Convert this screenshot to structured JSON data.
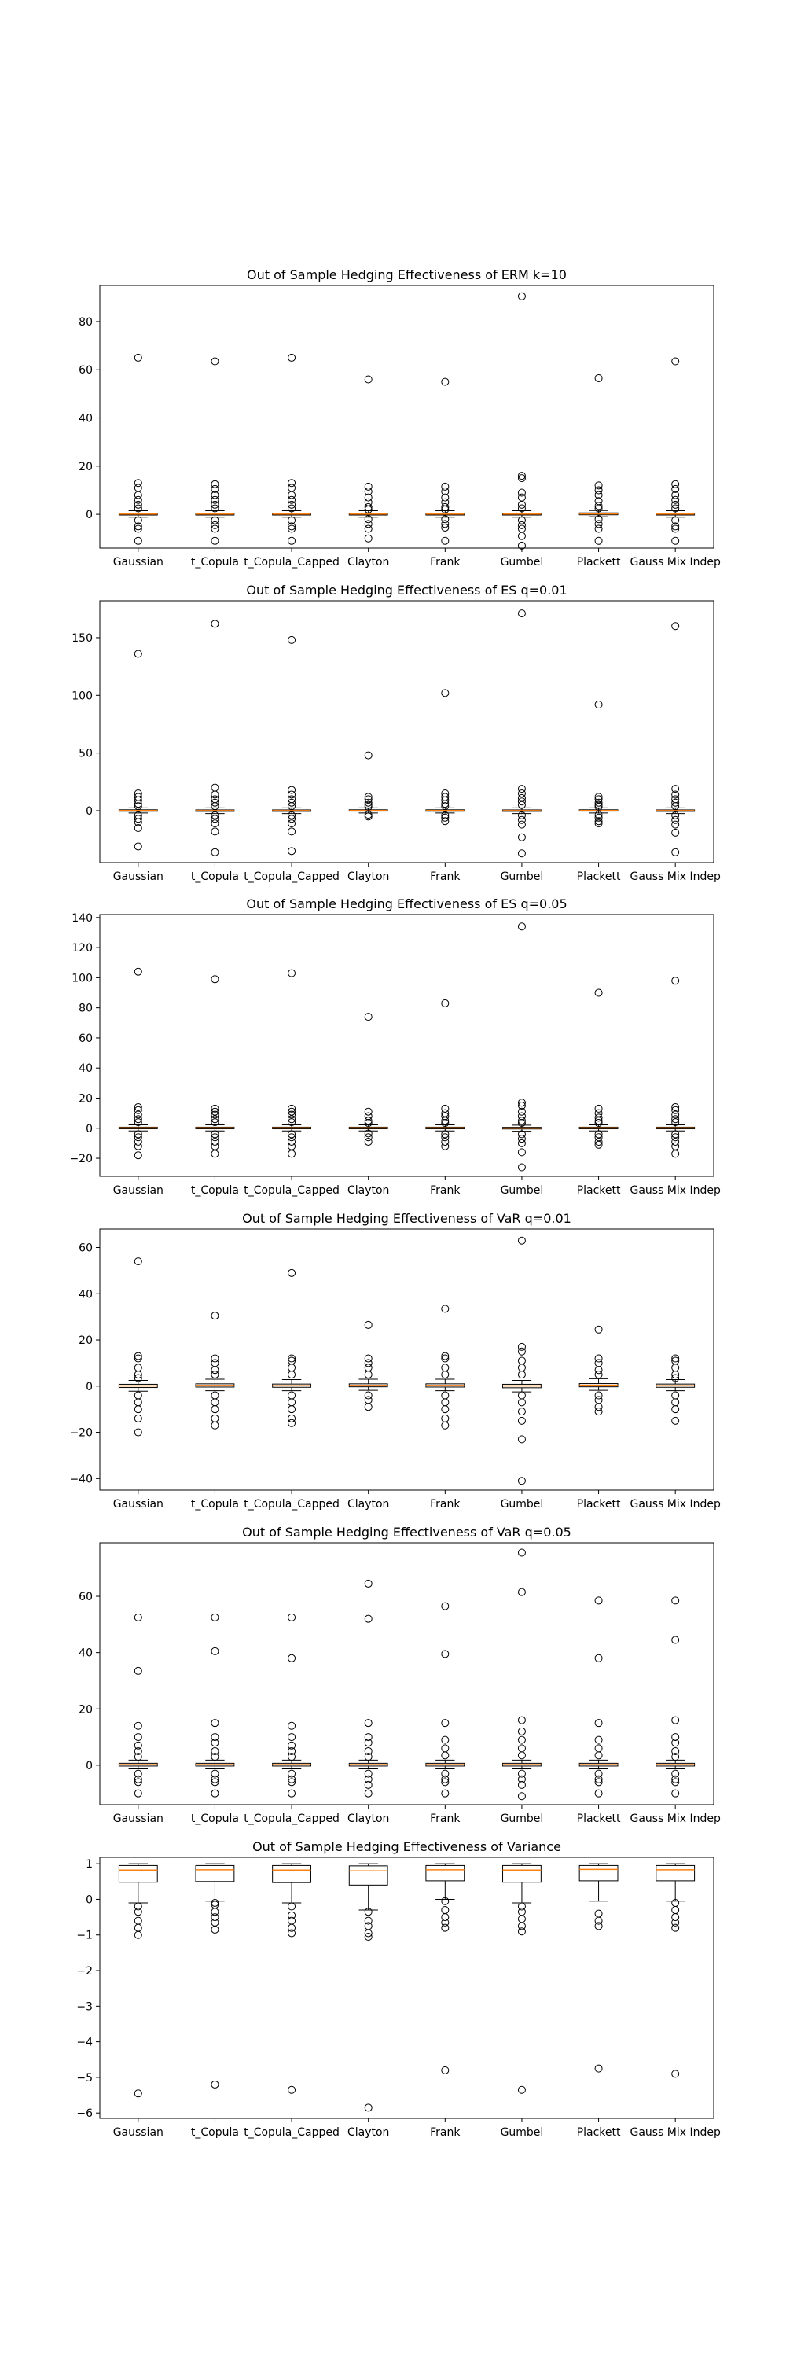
{
  "chart_data": [
    {
      "type": "box",
      "title": "Out of Sample Hedging Effectiveness of ERM k=10",
      "xlabel": "",
      "ylabel": "",
      "categories": [
        "Gaussian",
        "t_Copula",
        "t_Copula_Capped",
        "Clayton",
        "Frank",
        "Gumbel",
        "Plackett",
        "Gauss Mix Indep"
      ],
      "ylim": [
        -14,
        95
      ],
      "yticks": [
        0,
        20,
        40,
        60,
        80
      ],
      "grid": false,
      "boxes": [
        {
          "q1": -0.3,
          "median": 0.1,
          "q3": 0.5,
          "whislo": -1.2,
          "whishi": 1.5,
          "fliers": [
            65,
            13,
            11,
            8,
            6,
            4,
            2.5,
            -2.5,
            -5,
            -6,
            -11
          ]
        },
        {
          "q1": -0.3,
          "median": 0.1,
          "q3": 0.5,
          "whislo": -1.2,
          "whishi": 1.5,
          "fliers": [
            63.5,
            12.5,
            10.5,
            8,
            6,
            4,
            2.5,
            -2.5,
            -4.5,
            -6,
            -11
          ]
        },
        {
          "q1": -0.3,
          "median": 0.1,
          "q3": 0.5,
          "whislo": -1.2,
          "whishi": 1.5,
          "fliers": [
            65,
            13,
            11,
            8,
            6,
            4,
            2.5,
            -2.5,
            -5,
            -6,
            -11
          ]
        },
        {
          "q1": -0.3,
          "median": 0.1,
          "q3": 0.5,
          "whislo": -1.2,
          "whishi": 1.5,
          "fliers": [
            56,
            11.5,
            9.5,
            7,
            5,
            3,
            2,
            -2,
            -4,
            -6,
            -10
          ]
        },
        {
          "q1": -0.3,
          "median": 0.1,
          "q3": 0.5,
          "whislo": -1.2,
          "whishi": 1.5,
          "fliers": [
            55,
            11.5,
            9.5,
            7,
            5,
            3,
            2,
            -2,
            -4,
            -5.5,
            -11
          ]
        },
        {
          "q1": -0.3,
          "median": 0.1,
          "q3": 0.5,
          "whislo": -1.2,
          "whishi": 1.5,
          "fliers": [
            90.5,
            16,
            15,
            9,
            7,
            4,
            2.5,
            -2.5,
            -4.5,
            -6,
            -9,
            -13
          ]
        },
        {
          "q1": -0.2,
          "median": 0.2,
          "q3": 0.6,
          "whislo": -1.0,
          "whishi": 1.6,
          "fliers": [
            56.5,
            12,
            10,
            8,
            5.5,
            3.5,
            2.5,
            -2,
            -4,
            -6,
            -11
          ]
        },
        {
          "q1": -0.3,
          "median": 0.1,
          "q3": 0.5,
          "whislo": -1.2,
          "whishi": 1.5,
          "fliers": [
            63.5,
            12.5,
            10.5,
            8,
            6,
            4,
            2.5,
            -2.5,
            -5,
            -6,
            -11
          ]
        }
      ]
    },
    {
      "type": "box",
      "title": "Out of Sample Hedging Effectiveness of ES q=0.01",
      "xlabel": "",
      "ylabel": "",
      "categories": [
        "Gaussian",
        "t_Copula",
        "t_Copula_Capped",
        "Clayton",
        "Frank",
        "Gumbel",
        "Plackett",
        "Gauss Mix Indep"
      ],
      "ylim": [
        -45,
        182
      ],
      "yticks": [
        0,
        50,
        100,
        150
      ],
      "grid": false,
      "boxes": [
        {
          "q1": -0.5,
          "median": 0.2,
          "q3": 0.8,
          "whislo": -2,
          "whishi": 2.5,
          "fliers": [
            136,
            15,
            12,
            9,
            6,
            4,
            -4,
            -7,
            -10,
            -15,
            -31
          ]
        },
        {
          "q1": -0.6,
          "median": 0.1,
          "q3": 0.7,
          "whislo": -2.5,
          "whishi": 2.5,
          "fliers": [
            162,
            20,
            14,
            10,
            7,
            4,
            -4,
            -7,
            -11,
            -18,
            -36
          ]
        },
        {
          "q1": -0.6,
          "median": 0.1,
          "q3": 0.7,
          "whislo": -2.5,
          "whishi": 2.5,
          "fliers": [
            148,
            18,
            14,
            10,
            7,
            4,
            -4,
            -7,
            -11,
            -18,
            -35
          ]
        },
        {
          "q1": -0.4,
          "median": 0.2,
          "q3": 0.8,
          "whislo": -2,
          "whishi": 2.5,
          "fliers": [
            48,
            12,
            10,
            7,
            5,
            3.5,
            -3.5,
            -5
          ]
        },
        {
          "q1": -0.5,
          "median": 0.2,
          "q3": 0.8,
          "whislo": -2,
          "whishi": 2.5,
          "fliers": [
            102,
            15,
            12,
            9,
            6,
            4,
            -4,
            -6,
            -9
          ]
        },
        {
          "q1": -0.6,
          "median": 0.1,
          "q3": 0.7,
          "whislo": -2.5,
          "whishi": 2.5,
          "fliers": [
            171,
            19,
            15,
            11,
            8,
            5,
            -4,
            -8,
            -12,
            -23,
            -37
          ]
        },
        {
          "q1": -0.4,
          "median": 0.2,
          "q3": 0.8,
          "whislo": -2,
          "whishi": 2.5,
          "fliers": [
            92,
            12,
            10,
            7,
            5,
            3.5,
            -3.5,
            -6,
            -9,
            -11
          ]
        },
        {
          "q1": -0.6,
          "median": 0.1,
          "q3": 0.7,
          "whislo": -2.5,
          "whishi": 2.5,
          "fliers": [
            160,
            19,
            14,
            10,
            7,
            4,
            -4,
            -8,
            -12,
            -19,
            -36
          ]
        }
      ]
    },
    {
      "type": "box",
      "title": "Out of Sample Hedging Effectiveness of ES q=0.05",
      "xlabel": "",
      "ylabel": "",
      "categories": [
        "Gaussian",
        "t_Copula",
        "t_Copula_Capped",
        "Clayton",
        "Frank",
        "Gumbel",
        "Plackett",
        "Gauss Mix Indep"
      ],
      "ylim": [
        -32,
        142
      ],
      "yticks": [
        -20,
        0,
        20,
        40,
        60,
        80,
        100,
        120,
        140
      ],
      "grid": false,
      "boxes": [
        {
          "q1": -0.4,
          "median": 0.2,
          "q3": 0.7,
          "whislo": -1.8,
          "whishi": 2.2,
          "fliers": [
            104,
            14,
            12,
            9,
            6,
            4,
            -4,
            -6,
            -9,
            -12,
            -18
          ]
        },
        {
          "q1": -0.4,
          "median": 0.2,
          "q3": 0.7,
          "whislo": -1.8,
          "whishi": 2.2,
          "fliers": [
            99,
            13,
            11,
            9,
            6,
            4,
            -4,
            -6,
            -9,
            -12,
            -17
          ]
        },
        {
          "q1": -0.4,
          "median": 0.2,
          "q3": 0.7,
          "whislo": -1.8,
          "whishi": 2.2,
          "fliers": [
            103,
            13,
            11,
            9,
            6,
            4,
            -4,
            -6,
            -9,
            -12,
            -17
          ]
        },
        {
          "q1": -0.4,
          "median": 0.2,
          "q3": 0.7,
          "whislo": -1.8,
          "whishi": 2.2,
          "fliers": [
            74,
            11,
            8,
            5,
            3.5,
            -3.5,
            -6,
            -9
          ]
        },
        {
          "q1": -0.4,
          "median": 0.2,
          "q3": 0.7,
          "whislo": -1.8,
          "whishi": 2.2,
          "fliers": [
            83,
            13,
            10,
            8,
            5,
            3.5,
            -4,
            -6,
            -9,
            -12
          ]
        },
        {
          "q1": -0.5,
          "median": 0.1,
          "q3": 0.6,
          "whislo": -2,
          "whishi": 2,
          "fliers": [
            134,
            17,
            15,
            11,
            8,
            5,
            3.5,
            -4,
            -7,
            -10,
            -16,
            -26
          ]
        },
        {
          "q1": -0.4,
          "median": 0.2,
          "q3": 0.7,
          "whislo": -1.8,
          "whishi": 2.2,
          "fliers": [
            90,
            13,
            10,
            7,
            5,
            3.5,
            -4,
            -6,
            -9,
            -11
          ]
        },
        {
          "q1": -0.4,
          "median": 0.2,
          "q3": 0.7,
          "whislo": -1.8,
          "whishi": 2.2,
          "fliers": [
            98,
            14,
            12,
            9,
            6,
            4,
            -4,
            -6,
            -9,
            -12,
            -17
          ]
        }
      ]
    },
    {
      "type": "box",
      "title": "Out of Sample Hedging Effectiveness of VaR q=0.01",
      "xlabel": "",
      "ylabel": "",
      "categories": [
        "Gaussian",
        "t_Copula",
        "t_Copula_Capped",
        "Clayton",
        "Frank",
        "Gumbel",
        "Plackett",
        "Gauss Mix Indep"
      ],
      "ylim": [
        -45,
        68
      ],
      "yticks": [
        -40,
        -20,
        0,
        20,
        40,
        60
      ],
      "grid": false,
      "boxes": [
        {
          "q1": -0.6,
          "median": 0.1,
          "q3": 0.8,
          "whislo": -2.2,
          "whishi": 2.5,
          "fliers": [
            54,
            13,
            12,
            8,
            5,
            3.5,
            -4,
            -7,
            -10,
            -14,
            -20
          ]
        },
        {
          "q1": -0.4,
          "median": 0.3,
          "q3": 1.0,
          "whislo": -2,
          "whishi": 3,
          "fliers": [
            30.5,
            12,
            10,
            7,
            5,
            -4,
            -7,
            -10,
            -14,
            -17
          ]
        },
        {
          "q1": -0.5,
          "median": 0.2,
          "q3": 0.9,
          "whislo": -2,
          "whishi": 2.8,
          "fliers": [
            49,
            12,
            11,
            8,
            5,
            -4,
            -7,
            -10,
            -14,
            -16
          ]
        },
        {
          "q1": -0.3,
          "median": 0.3,
          "q3": 1.0,
          "whislo": -1.8,
          "whishi": 3,
          "fliers": [
            26.5,
            12,
            10,
            8,
            5,
            -4,
            -6,
            -9
          ]
        },
        {
          "q1": -0.4,
          "median": 0.3,
          "q3": 1.0,
          "whislo": -2,
          "whishi": 3,
          "fliers": [
            33.5,
            13,
            12,
            8,
            5,
            -4,
            -7,
            -10,
            -14,
            -17
          ]
        },
        {
          "q1": -0.7,
          "median": 0.1,
          "q3": 0.8,
          "whislo": -2.5,
          "whishi": 2.5,
          "fliers": [
            63,
            17,
            15,
            11,
            8,
            5,
            -4,
            -7,
            -11,
            -15,
            -23,
            -41
          ]
        },
        {
          "q1": -0.3,
          "median": 0.4,
          "q3": 1.1,
          "whislo": -1.8,
          "whishi": 3.2,
          "fliers": [
            24.5,
            12,
            10,
            7,
            5,
            -4,
            -6,
            -9,
            -11
          ]
        },
        {
          "q1": -0.5,
          "median": 0.2,
          "q3": 0.9,
          "whislo": -2,
          "whishi": 2.8,
          "fliers": [
            12,
            11,
            8,
            5,
            3.5,
            -4,
            -7,
            -10,
            -15
          ]
        }
      ]
    },
    {
      "type": "box",
      "title": "Out of Sample Hedging Effectiveness of VaR q=0.05",
      "xlabel": "",
      "ylabel": "",
      "categories": [
        "Gaussian",
        "t_Copula",
        "t_Copula_Capped",
        "Clayton",
        "Frank",
        "Gumbel",
        "Plackett",
        "Gauss Mix Indep"
      ],
      "ylim": [
        -14,
        79
      ],
      "yticks": [
        0,
        20,
        40,
        60
      ],
      "grid": false,
      "boxes": [
        {
          "q1": -0.3,
          "median": 0.2,
          "q3": 0.7,
          "whislo": -1.3,
          "whishi": 1.8,
          "fliers": [
            52.5,
            33.5,
            14,
            10,
            7,
            5,
            3,
            -3,
            -5,
            -6,
            -10
          ]
        },
        {
          "q1": -0.3,
          "median": 0.2,
          "q3": 0.7,
          "whislo": -1.3,
          "whishi": 1.8,
          "fliers": [
            52.5,
            40.5,
            15,
            10,
            8,
            5,
            3,
            -3,
            -5,
            -6,
            -10
          ]
        },
        {
          "q1": -0.3,
          "median": 0.2,
          "q3": 0.7,
          "whislo": -1.3,
          "whishi": 1.8,
          "fliers": [
            52.5,
            38,
            14,
            10,
            7,
            5,
            3,
            -3,
            -5,
            -6,
            -10
          ]
        },
        {
          "q1": -0.3,
          "median": 0.2,
          "q3": 0.7,
          "whislo": -1.3,
          "whishi": 1.8,
          "fliers": [
            64.5,
            52,
            15,
            10,
            8,
            5,
            3,
            -3,
            -5,
            -7,
            -10
          ]
        },
        {
          "q1": -0.3,
          "median": 0.2,
          "q3": 0.7,
          "whislo": -1.3,
          "whishi": 1.8,
          "fliers": [
            56.5,
            39.5,
            15,
            9,
            6,
            3.5,
            -3,
            -5,
            -6,
            -10
          ]
        },
        {
          "q1": -0.3,
          "median": 0.2,
          "q3": 0.7,
          "whislo": -1.3,
          "whishi": 1.8,
          "fliers": [
            75.5,
            61.5,
            16,
            12,
            9,
            6,
            3.5,
            -3,
            -5,
            -7,
            -11
          ]
        },
        {
          "q1": -0.3,
          "median": 0.2,
          "q3": 0.7,
          "whislo": -1.3,
          "whishi": 1.8,
          "fliers": [
            58.5,
            38,
            15,
            9,
            6,
            3.5,
            -3,
            -5,
            -6,
            -10
          ]
        },
        {
          "q1": -0.3,
          "median": 0.2,
          "q3": 0.7,
          "whislo": -1.3,
          "whishi": 1.8,
          "fliers": [
            58.5,
            44.5,
            16,
            10,
            8,
            5,
            3,
            -3,
            -5,
            -6,
            -10
          ]
        }
      ]
    },
    {
      "type": "box",
      "title": "Out of Sample Hedging Effectiveness of Variance",
      "xlabel": "",
      "ylabel": "",
      "categories": [
        "Gaussian",
        "t_Copula",
        "t_Copula_Capped",
        "Clayton",
        "Frank",
        "Gumbel",
        "Plackett",
        "Gauss Mix Indep"
      ],
      "ylim": [
        -6.15,
        1.18
      ],
      "yticks": [
        -6,
        -5,
        -4,
        -3,
        -2,
        -1,
        0,
        1
      ],
      "grid": false,
      "boxes": [
        {
          "q1": 0.48,
          "median": 0.82,
          "q3": 0.95,
          "whislo": -0.1,
          "whishi": 1.0,
          "fliers": [
            -0.2,
            -0.35,
            -0.6,
            -0.8,
            -1.0,
            -5.45
          ]
        },
        {
          "q1": 0.5,
          "median": 0.83,
          "q3": 0.95,
          "whislo": -0.05,
          "whishi": 1.0,
          "fliers": [
            -0.1,
            -0.15,
            -0.35,
            -0.5,
            -0.65,
            -0.85,
            -5.2
          ]
        },
        {
          "q1": 0.47,
          "median": 0.82,
          "q3": 0.95,
          "whislo": -0.1,
          "whishi": 1.0,
          "fliers": [
            -0.2,
            -0.45,
            -0.6,
            -0.8,
            -0.95,
            -5.35
          ]
        },
        {
          "q1": 0.4,
          "median": 0.8,
          "q3": 0.94,
          "whislo": -0.3,
          "whishi": 1.0,
          "fliers": [
            -0.35,
            -0.6,
            -0.75,
            -0.95,
            -1.05,
            -5.85
          ]
        },
        {
          "q1": 0.52,
          "median": 0.83,
          "q3": 0.95,
          "whislo": 0.0,
          "whishi": 1.0,
          "fliers": [
            -0.05,
            -0.3,
            -0.5,
            -0.65,
            -0.8,
            -4.8
          ]
        },
        {
          "q1": 0.48,
          "median": 0.82,
          "q3": 0.95,
          "whislo": -0.1,
          "whishi": 1.0,
          "fliers": [
            -0.2,
            -0.35,
            -0.55,
            -0.75,
            -0.9,
            -5.35
          ]
        },
        {
          "q1": 0.52,
          "median": 0.84,
          "q3": 0.95,
          "whislo": -0.05,
          "whishi": 1.0,
          "fliers": [
            -0.4,
            -0.6,
            -0.75,
            -4.75
          ]
        },
        {
          "q1": 0.52,
          "median": 0.83,
          "q3": 0.95,
          "whislo": -0.05,
          "whishi": 1.0,
          "fliers": [
            -0.1,
            -0.3,
            -0.5,
            -0.65,
            -0.8,
            -4.9
          ]
        }
      ]
    }
  ],
  "colors": {
    "median": "#ff7f0e",
    "box": "#000000",
    "background": "#ffffff"
  }
}
